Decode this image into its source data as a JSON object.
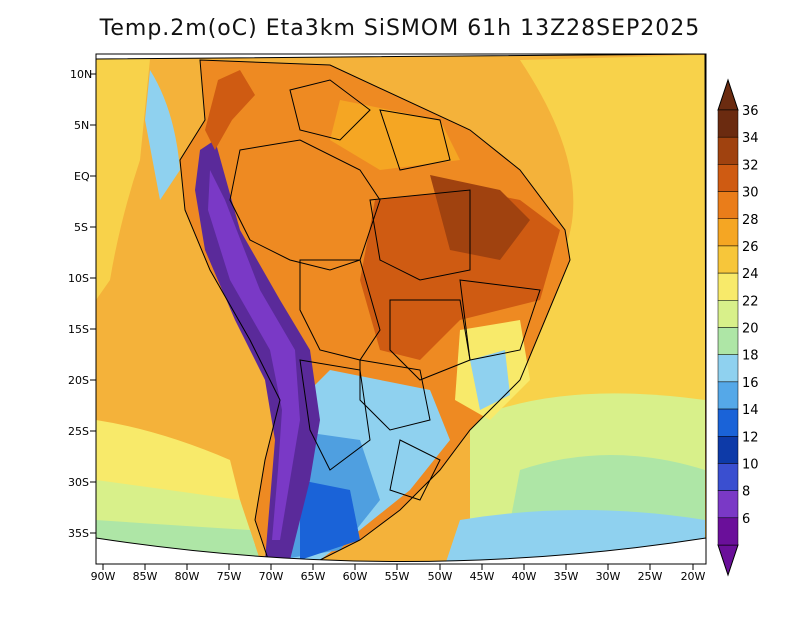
{
  "title": "Temp.2m(oC) Eta3km SiSMOM 61h 13Z28SEP2025",
  "colorbar": {
    "labels": [
      "36",
      "34",
      "32",
      "30",
      "28",
      "26",
      "24",
      "22",
      "20",
      "18",
      "16",
      "14",
      "12",
      "10",
      "8",
      "6"
    ],
    "colors": [
      "#6b2b10",
      "#a0420f",
      "#cf5b12",
      "#ea7d1a",
      "#f5a623",
      "#f7c63a",
      "#f8ea6a",
      "#d8f08a",
      "#aee6a6",
      "#8fd1ef",
      "#55a8e8",
      "#1a63d8",
      "#0d3aa8",
      "#3a4fd0",
      "#7a39c6",
      "#6a0f9a"
    ]
  },
  "axes": {
    "lon_labels": [
      "90W",
      "85W",
      "80W",
      "75W",
      "70W",
      "65W",
      "60W",
      "55W",
      "50W",
      "45W",
      "40W",
      "35W",
      "30W",
      "25W",
      "20W"
    ],
    "lat_labels": [
      "10N",
      "5N",
      "EQ",
      "5S",
      "10S",
      "15S",
      "20S",
      "25S",
      "30S",
      "35S"
    ]
  },
  "palette": {
    "ocean_warm": "#f4b23a",
    "ocean_mid": "#f8d24a",
    "ocean_cool": "#cfe88a",
    "ocean_cold": "#8fd1ef",
    "amazon": "#ee8a22",
    "hot": "#cf5b12",
    "andes": "#5a2a9a",
    "south": "#4f9fe0"
  }
}
